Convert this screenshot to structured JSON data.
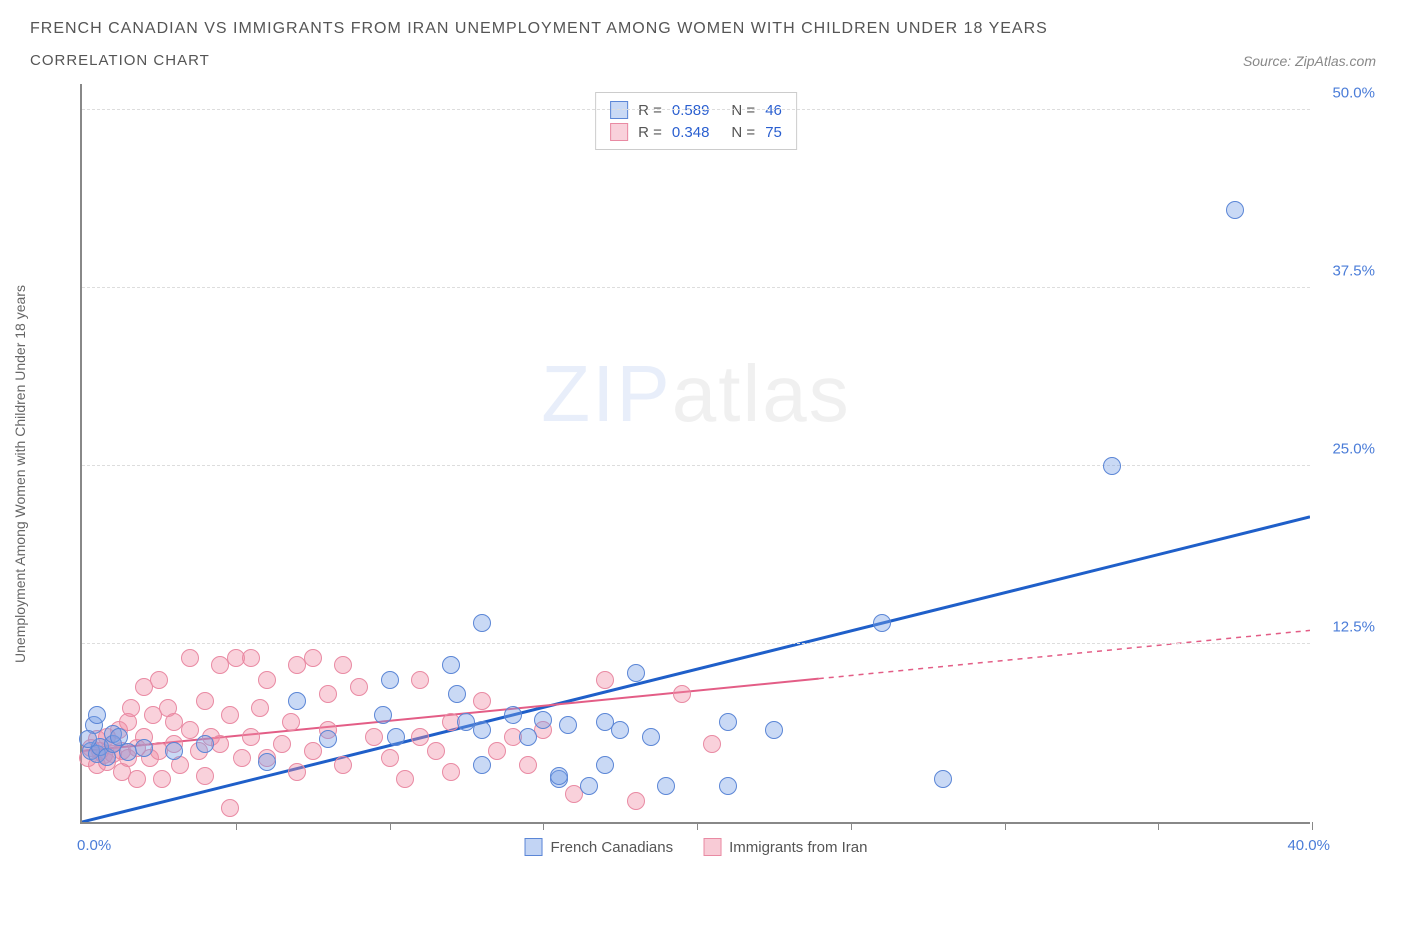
{
  "header": {
    "title": "FRENCH CANADIAN VS IMMIGRANTS FROM IRAN UNEMPLOYMENT AMONG WOMEN WITH CHILDREN UNDER 18 YEARS",
    "subtitle": "CORRELATION CHART",
    "source_prefix": "Source: ",
    "source_name": "ZipAtlas.com"
  },
  "watermark": {
    "left": "ZIP",
    "right": "atlas"
  },
  "chart": {
    "type": "scatter",
    "y_axis_label": "Unemployment Among Women with Children Under 18 years",
    "xlim": [
      0,
      40
    ],
    "ylim": [
      0,
      52
    ],
    "x_start_label": "0.0%",
    "x_end_label": "40.0%",
    "x_tick_positions": [
      5,
      10,
      15,
      20,
      25,
      30,
      35,
      40
    ],
    "y_ticks": [
      {
        "v": 12.5,
        "label": "12.5%"
      },
      {
        "v": 25.0,
        "label": "25.0%"
      },
      {
        "v": 37.5,
        "label": "37.5%"
      },
      {
        "v": 50.0,
        "label": "50.0%"
      }
    ],
    "background_color": "#ffffff",
    "grid_color": "#dddddd",
    "axis_color": "#888888",
    "tick_label_color": "#4a7cd8",
    "series": [
      {
        "id": "french_canadians",
        "label": "French Canadians",
        "fill": "rgba(120,160,230,0.40)",
        "stroke": "#5b86d6",
        "trend_color": "#1f5fc9",
        "trend_width": 3,
        "marker_radius": 9,
        "R_label": "R = ",
        "R_value": "0.589",
        "N_label": "N = ",
        "N_value": "46",
        "trend": {
          "x1": 0,
          "y1": 0.0,
          "x2": 40,
          "y2": 21.5,
          "dash_after_x": null
        },
        "points": [
          [
            0.3,
            5.0
          ],
          [
            0.5,
            4.8
          ],
          [
            0.6,
            5.3
          ],
          [
            0.8,
            4.6
          ],
          [
            1.0,
            5.5
          ],
          [
            1.0,
            6.2
          ],
          [
            0.4,
            6.8
          ],
          [
            0.2,
            5.8
          ],
          [
            0.5,
            7.5
          ],
          [
            1.2,
            6.0
          ],
          [
            1.5,
            4.9
          ],
          [
            2.0,
            5.2
          ],
          [
            3.0,
            5.0
          ],
          [
            4.0,
            5.5
          ],
          [
            6.0,
            4.2
          ],
          [
            7.0,
            8.5
          ],
          [
            8.0,
            5.8
          ],
          [
            9.8,
            7.5
          ],
          [
            10.0,
            10.0
          ],
          [
            10.2,
            6.0
          ],
          [
            12.0,
            11.0
          ],
          [
            12.2,
            9.0
          ],
          [
            12.5,
            7.0
          ],
          [
            13.0,
            4.0
          ],
          [
            13.0,
            6.5
          ],
          [
            13.0,
            14.0
          ],
          [
            14.0,
            7.5
          ],
          [
            14.5,
            6.0
          ],
          [
            15.0,
            7.2
          ],
          [
            15.5,
            3.0
          ],
          [
            15.5,
            3.2
          ],
          [
            15.8,
            6.8
          ],
          [
            16.5,
            2.5
          ],
          [
            17.0,
            4.0
          ],
          [
            17.0,
            7.0
          ],
          [
            17.5,
            6.5
          ],
          [
            18.0,
            10.5
          ],
          [
            18.5,
            6.0
          ],
          [
            19.0,
            2.5
          ],
          [
            21.0,
            7.0
          ],
          [
            21.0,
            2.5
          ],
          [
            26.0,
            14.0
          ],
          [
            28.0,
            3.0
          ],
          [
            33.5,
            25.0
          ],
          [
            37.5,
            43.0
          ],
          [
            22.5,
            6.5
          ]
        ]
      },
      {
        "id": "immigrants_iran",
        "label": "Immigrants from Iran",
        "fill": "rgba(240,140,165,0.40)",
        "stroke": "#e98aa3",
        "trend_color": "#e35d86",
        "trend_width": 2,
        "marker_radius": 9,
        "R_label": "R = ",
        "R_value": "0.348",
        "N_label": "N = ",
        "N_value": "75",
        "trend": {
          "x1": 0,
          "y1": 5.0,
          "x2": 40,
          "y2": 13.5,
          "dash_after_x": 24
        },
        "points": [
          [
            0.2,
            4.5
          ],
          [
            0.3,
            5.2
          ],
          [
            0.5,
            4.0
          ],
          [
            0.5,
            5.8
          ],
          [
            0.6,
            5.0
          ],
          [
            0.7,
            4.7
          ],
          [
            0.8,
            6.0
          ],
          [
            0.8,
            4.2
          ],
          [
            1.0,
            5.5
          ],
          [
            1.0,
            4.8
          ],
          [
            1.2,
            6.5
          ],
          [
            1.3,
            5.0
          ],
          [
            1.3,
            3.5
          ],
          [
            1.5,
            7.0
          ],
          [
            1.5,
            4.5
          ],
          [
            1.6,
            8.0
          ],
          [
            1.8,
            5.2
          ],
          [
            1.8,
            3.0
          ],
          [
            2.0,
            6.0
          ],
          [
            2.0,
            9.5
          ],
          [
            2.2,
            4.5
          ],
          [
            2.3,
            7.5
          ],
          [
            2.5,
            5.0
          ],
          [
            2.5,
            10.0
          ],
          [
            2.6,
            3.0
          ],
          [
            2.8,
            8.0
          ],
          [
            3.0,
            5.5
          ],
          [
            3.0,
            7.0
          ],
          [
            3.2,
            4.0
          ],
          [
            3.5,
            11.5
          ],
          [
            3.5,
            6.5
          ],
          [
            3.8,
            5.0
          ],
          [
            4.0,
            8.5
          ],
          [
            4.0,
            3.2
          ],
          [
            4.2,
            6.0
          ],
          [
            4.5,
            11.0
          ],
          [
            4.5,
            5.5
          ],
          [
            4.8,
            7.5
          ],
          [
            4.8,
            1.0
          ],
          [
            5.0,
            11.5
          ],
          [
            5.2,
            4.5
          ],
          [
            5.5,
            11.5
          ],
          [
            5.5,
            6.0
          ],
          [
            5.8,
            8.0
          ],
          [
            6.0,
            4.5
          ],
          [
            6.0,
            10.0
          ],
          [
            6.5,
            5.5
          ],
          [
            6.8,
            7.0
          ],
          [
            7.0,
            11.0
          ],
          [
            7.0,
            3.5
          ],
          [
            7.5,
            5.0
          ],
          [
            7.5,
            11.5
          ],
          [
            8.0,
            6.5
          ],
          [
            8.0,
            9.0
          ],
          [
            8.5,
            4.0
          ],
          [
            8.5,
            11.0
          ],
          [
            9.0,
            9.5
          ],
          [
            9.5,
            6.0
          ],
          [
            10.0,
            4.5
          ],
          [
            10.5,
            3.0
          ],
          [
            11.0,
            6.0
          ],
          [
            11.0,
            10.0
          ],
          [
            11.5,
            5.0
          ],
          [
            12.0,
            7.0
          ],
          [
            12.0,
            3.5
          ],
          [
            13.0,
            8.5
          ],
          [
            13.5,
            5.0
          ],
          [
            14.0,
            6.0
          ],
          [
            14.5,
            4.0
          ],
          [
            15.0,
            6.5
          ],
          [
            16.0,
            2.0
          ],
          [
            17.0,
            10.0
          ],
          [
            18.0,
            1.5
          ],
          [
            19.5,
            9.0
          ],
          [
            20.5,
            5.5
          ]
        ]
      }
    ],
    "legend_bottom": [
      {
        "label": "French Canadians",
        "fill": "rgba(120,160,230,0.45)",
        "stroke": "#5b86d6"
      },
      {
        "label": "Immigrants from Iran",
        "fill": "rgba(240,140,165,0.45)",
        "stroke": "#e98aa3"
      }
    ]
  }
}
